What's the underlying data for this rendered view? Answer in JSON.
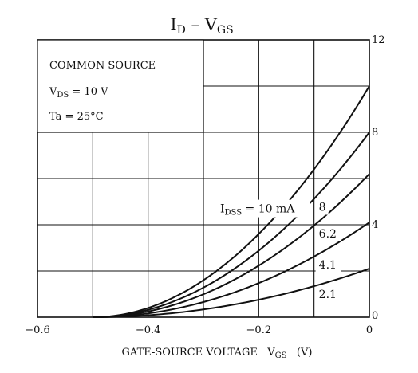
{
  "chart_data": {
    "type": "line",
    "title": {
      "main": "I",
      "main_sub": "D",
      "dash": "–",
      "rhs": "V",
      "rhs_sub": "GS"
    },
    "xlabel": {
      "text": "GATE-SOURCE VOLTAGE",
      "symbol": "V",
      "symbol_sub": "GS",
      "unit": "(V)"
    },
    "ylabel": "",
    "xlim": [
      -0.6,
      0
    ],
    "ylim": [
      0,
      12
    ],
    "x_ticks": [
      {
        "value": -0.6,
        "label": "−0.6"
      },
      {
        "value": -0.4,
        "label": "−0.4"
      },
      {
        "value": -0.2,
        "label": "−0.2"
      },
      {
        "value": 0,
        "label": "0"
      }
    ],
    "y_ticks": [
      {
        "value": 0,
        "label": "0"
      },
      {
        "value": 4,
        "label": "4"
      },
      {
        "value": 8,
        "label": "8"
      },
      {
        "value": 12,
        "label": "12"
      }
    ],
    "grid": true,
    "x_grid": [
      -0.6,
      -0.5,
      -0.4,
      -0.3,
      -0.2,
      -0.1,
      0
    ],
    "y_grid": [
      0,
      2,
      4,
      6,
      8,
      10,
      12
    ],
    "conditions": {
      "line1": "COMMON SOURCE",
      "line2_prefix": "V",
      "line2_sub": "DS",
      "line2_suffix": " = 10 V",
      "line3": "Ta = 25°C"
    },
    "series_label_prefix": "I",
    "series_label_sub": "DSS",
    "series": [
      {
        "label": "10 mA",
        "idss": 10,
        "label_at": -0.2,
        "x": [
          -0.5,
          -0.4,
          -0.3,
          -0.2,
          -0.1,
          0
        ],
        "values": [
          0,
          0.4,
          1.6,
          3.6,
          6.4,
          10
        ]
      },
      {
        "label": "8",
        "idss": 8,
        "label_at": -0.1,
        "x": [
          -0.5,
          -0.4,
          -0.3,
          -0.2,
          -0.1,
          0
        ],
        "values": [
          0,
          0.32,
          1.28,
          2.88,
          5.12,
          8
        ]
      },
      {
        "label": "6.2",
        "idss": 6.2,
        "label_at": -0.1,
        "x": [
          -0.5,
          -0.4,
          -0.3,
          -0.2,
          -0.1,
          0
        ],
        "values": [
          0,
          0.25,
          0.99,
          2.23,
          3.97,
          6.2
        ]
      },
      {
        "label": "4.1",
        "idss": 4.1,
        "label_at": -0.1,
        "x": [
          -0.5,
          -0.4,
          -0.3,
          -0.2,
          -0.1,
          0
        ],
        "values": [
          0,
          0.16,
          0.66,
          1.48,
          2.62,
          4.1
        ]
      },
      {
        "label": "2.1",
        "idss": 2.1,
        "label_at": -0.1,
        "x": [
          -0.5,
          -0.4,
          -0.3,
          -0.2,
          -0.1,
          0
        ],
        "values": [
          0,
          0.08,
          0.34,
          0.76,
          1.34,
          2.1
        ]
      }
    ]
  }
}
